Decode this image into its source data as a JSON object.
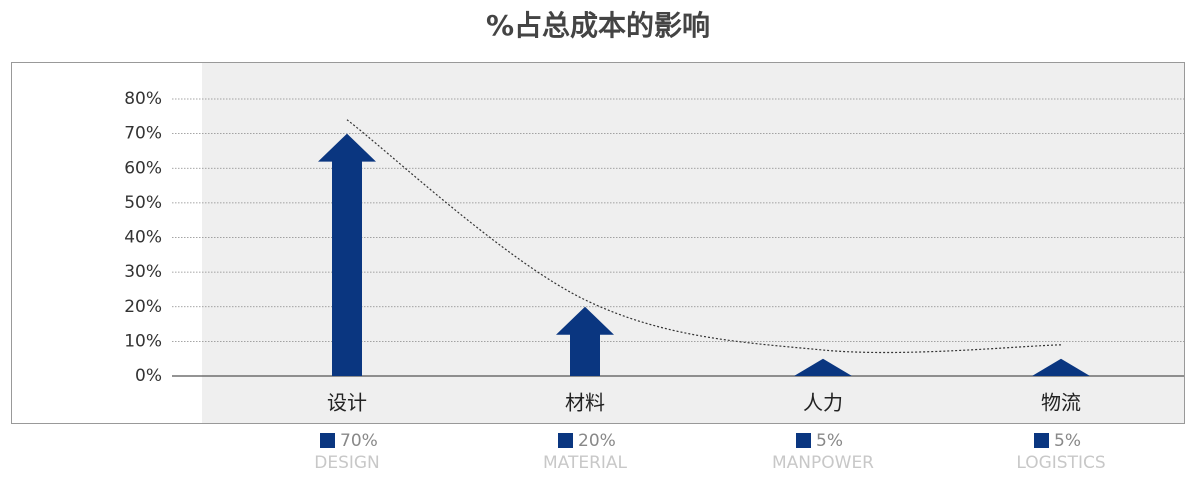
{
  "chart_data": {
    "type": "arrow-bar",
    "title": "%占总成本的影响",
    "categories": [
      "设计",
      "材料",
      "人力",
      "物流"
    ],
    "values": [
      70,
      20,
      5,
      5
    ],
    "value_labels": [
      "70%",
      "20%",
      "5%",
      "5%"
    ],
    "sublabels": [
      "DESIGN",
      "MATERIAL",
      "MANPOWER",
      "LOGISTICS"
    ],
    "trend_values": [
      74,
      22,
      7.5,
      9
    ],
    "color": "#0a3680",
    "ylim": [
      0,
      80
    ],
    "yticks": [
      {
        "value": 0,
        "label": "0%"
      },
      {
        "value": 10,
        "label": "10%"
      },
      {
        "value": 20,
        "label": "20%"
      },
      {
        "value": 30,
        "label": "30%"
      },
      {
        "value": 40,
        "label": "40%"
      },
      {
        "value": 50,
        "label": "50%"
      },
      {
        "value": 60,
        "label": "60%"
      },
      {
        "value": 70,
        "label": "70%"
      },
      {
        "value": 80,
        "label": "80%"
      }
    ],
    "grid": true
  }
}
